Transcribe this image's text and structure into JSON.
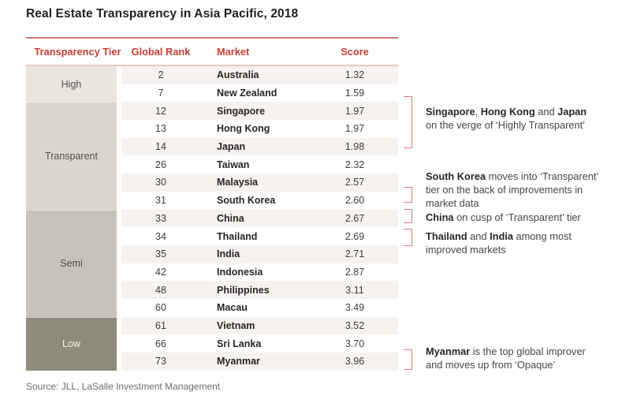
{
  "title": "Real Estate Transparency in Asia Pacific, 2018",
  "source": "Source: JLL, LaSalle Investment Management",
  "header": {
    "tier": "Transparency Tier",
    "rank": "Global Rank",
    "market": "Market",
    "score": "Score"
  },
  "colors": {
    "header_text": "#c63d33",
    "rule_top": "#ce7a71",
    "rule_under_header": "#ecc7c1",
    "bracket": "#c9827b",
    "row_stripe": "#f7f2f0",
    "tier_high_bg": "#eae6df",
    "tier_transparent_bg": "#dad6ce",
    "tier_semi_bg": "#c7c3ba",
    "tier_low_bg": "#8e8a7d",
    "tier_text": "#51504a",
    "tier_low_text": "#f4f1ea"
  },
  "tiers": [
    {
      "label": "High",
      "bg": "#eae6df",
      "fg": "#51504a",
      "rows": [
        {
          "rank": "2",
          "market": "Australia",
          "score": "1.32"
        },
        {
          "rank": "7",
          "market": "New Zealand",
          "score": "1.59"
        }
      ]
    },
    {
      "label": "Transparent",
      "bg": "#dad6ce",
      "fg": "#51504a",
      "rows": [
        {
          "rank": "12",
          "market": "Singapore",
          "score": "1.97"
        },
        {
          "rank": "13",
          "market": "Hong Kong",
          "score": "1.97"
        },
        {
          "rank": "14",
          "market": "Japan",
          "score": "1.98"
        },
        {
          "rank": "26",
          "market": "Taiwan",
          "score": "2.32"
        },
        {
          "rank": "30",
          "market": "Malaysia",
          "score": "2.57"
        },
        {
          "rank": "31",
          "market": "South Korea",
          "score": "2.60"
        }
      ]
    },
    {
      "label": "Semi",
      "bg": "#c7c3ba",
      "fg": "#51504a",
      "rows": [
        {
          "rank": "33",
          "market": "China",
          "score": "2.67"
        },
        {
          "rank": "34",
          "market": "Thailand",
          "score": "2.69"
        },
        {
          "rank": "35",
          "market": "India",
          "score": "2.71"
        },
        {
          "rank": "42",
          "market": "Indonesia",
          "score": "2.87"
        },
        {
          "rank": "48",
          "market": "Philippines",
          "score": "3.11"
        },
        {
          "rank": "60",
          "market": "Macau",
          "score": "3.49"
        }
      ]
    },
    {
      "label": "Low",
      "bg": "#8e8a7d",
      "fg": "#f4f1ea",
      "rows": [
        {
          "rank": "61",
          "market": "Vietnam",
          "score": "3.52"
        },
        {
          "rank": "66",
          "market": "Sri Lanka",
          "score": "3.70"
        },
        {
          "rank": "73",
          "market": "Myanmar",
          "score": "3.96"
        }
      ]
    }
  ],
  "annotations": [
    {
      "segments": [
        {
          "t": "Singapore",
          "b": true
        },
        {
          "t": ", "
        },
        {
          "t": "Hong Kong",
          "b": true
        },
        {
          "t": " and "
        },
        {
          "t": "Japan",
          "b": true
        },
        {
          "br": true
        },
        {
          "t": "on the verge of ‘Highly Transparent’"
        }
      ]
    },
    {
      "segments": [
        {
          "t": "South Korea",
          "b": true
        },
        {
          "t": " moves into ‘Transparent’"
        },
        {
          "br": true
        },
        {
          "t": "tier on the back of improvements in"
        },
        {
          "br": true
        },
        {
          "t": "market data"
        }
      ]
    },
    {
      "segments": [
        {
          "t": "China",
          "b": true
        },
        {
          "t": " on cusp of ‘Transparent’ tier"
        }
      ]
    },
    {
      "segments": [
        {
          "t": "Thailand",
          "b": true
        },
        {
          "t": " and "
        },
        {
          "t": "India",
          "b": true
        },
        {
          "t": " among most"
        },
        {
          "br": true
        },
        {
          "t": "improved markets"
        }
      ]
    },
    {
      "segments": [
        {
          "t": "Myanmar",
          "b": true
        },
        {
          "t": " is the top global improver"
        },
        {
          "br": true
        },
        {
          "t": "and moves up from ‘Opaque’"
        }
      ]
    }
  ],
  "chart_data": {
    "type": "table",
    "title": "Real Estate Transparency in Asia Pacific, 2018",
    "columns": [
      "Transparency Tier",
      "Global Rank",
      "Market",
      "Score"
    ],
    "rows": [
      [
        "High",
        2,
        "Australia",
        1.32
      ],
      [
        "High",
        7,
        "New Zealand",
        1.59
      ],
      [
        "Transparent",
        12,
        "Singapore",
        1.97
      ],
      [
        "Transparent",
        13,
        "Hong Kong",
        1.97
      ],
      [
        "Transparent",
        14,
        "Japan",
        1.98
      ],
      [
        "Transparent",
        26,
        "Taiwan",
        2.32
      ],
      [
        "Transparent",
        30,
        "Malaysia",
        2.57
      ],
      [
        "Transparent",
        31,
        "South Korea",
        2.6
      ],
      [
        "Semi",
        33,
        "China",
        2.67
      ],
      [
        "Semi",
        34,
        "Thailand",
        2.69
      ],
      [
        "Semi",
        35,
        "India",
        2.71
      ],
      [
        "Semi",
        42,
        "Indonesia",
        2.87
      ],
      [
        "Semi",
        48,
        "Philippines",
        3.11
      ],
      [
        "Semi",
        60,
        "Macau",
        3.49
      ],
      [
        "Low",
        61,
        "Vietnam",
        3.52
      ],
      [
        "Low",
        66,
        "Sri Lanka",
        3.7
      ],
      [
        "Low",
        73,
        "Myanmar",
        3.96
      ]
    ],
    "annotations": [
      "Singapore, Hong Kong and Japan on the verge of ‘Highly Transparent’",
      "South Korea moves into ‘Transparent’ tier on the back of improvements in market data",
      "China on cusp of ‘Transparent’ tier",
      "Thailand and India among most improved markets",
      "Myanmar is the top global improver and moves up from ‘Opaque’"
    ],
    "source": "Source: JLL, LaSalle Investment Management"
  }
}
